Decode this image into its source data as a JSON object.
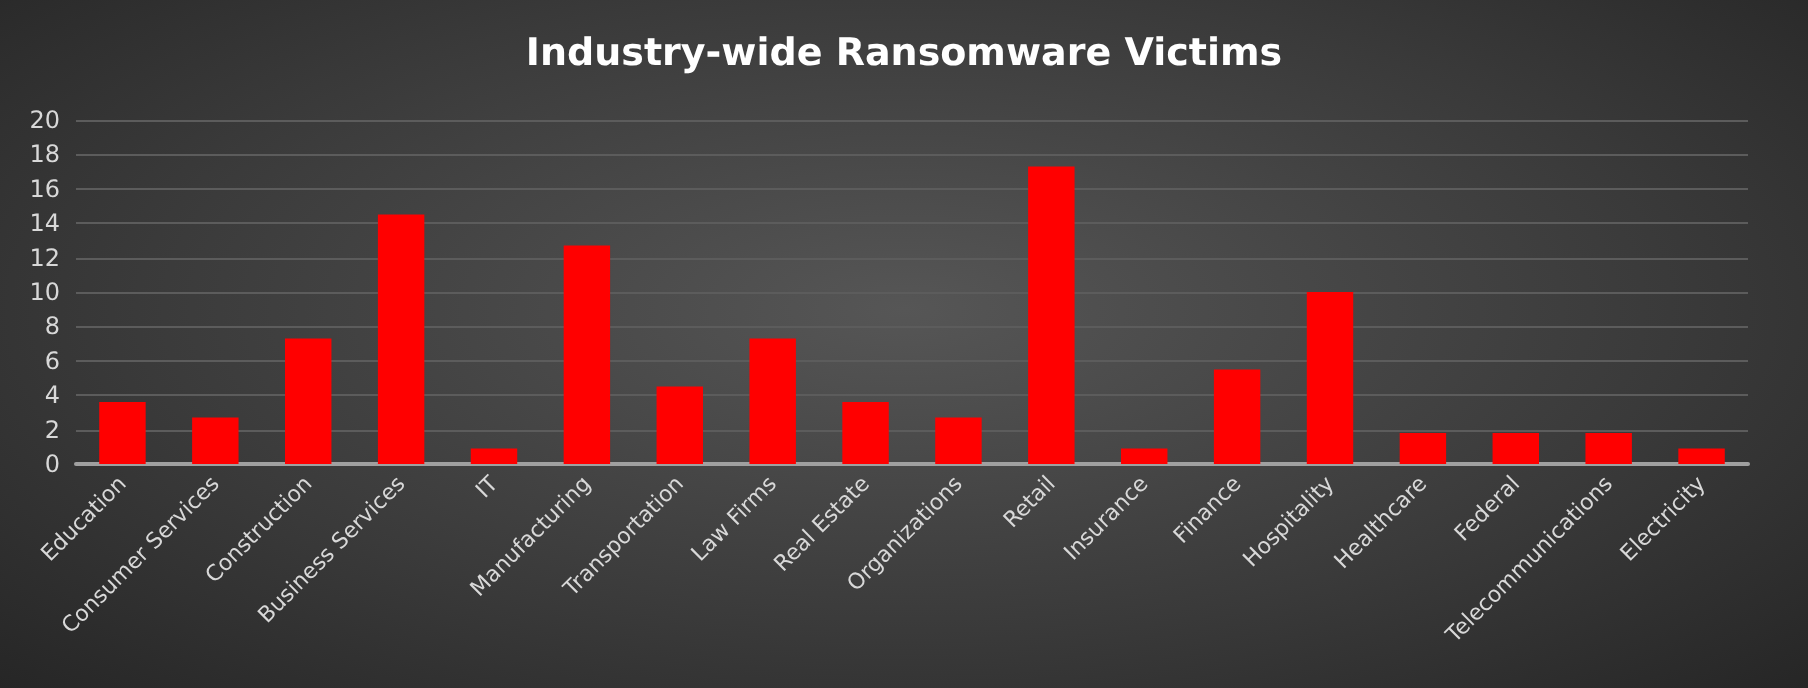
{
  "chart_data": {
    "type": "bar",
    "title": "Industry-wide Ransomware Victims",
    "categories": [
      "Education",
      "Consumer Services",
      "Construction",
      "Business Services",
      "IT",
      "Manufacturing",
      "Transportation",
      "Law Firms",
      "Real Estate",
      "Organizations",
      "Retail",
      "Insurance",
      "Finance",
      "Hospitality",
      "Healthcare",
      "Federal",
      "Telecommunications",
      "Electricity"
    ],
    "values": [
      3.6,
      2.7,
      7.3,
      14.5,
      0.9,
      12.7,
      4.5,
      7.3,
      3.6,
      2.7,
      17.3,
      0.9,
      5.5,
      10,
      1.8,
      1.8,
      1.8,
      0.9
    ],
    "color": "#ff0000",
    "ylim": [
      0,
      20
    ],
    "yticks": [
      0,
      2,
      4,
      6,
      8,
      10,
      12,
      14,
      16,
      18,
      20
    ],
    "grid": "y"
  }
}
